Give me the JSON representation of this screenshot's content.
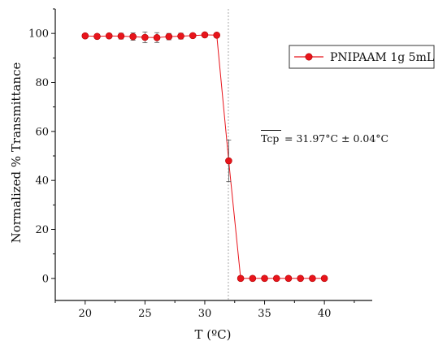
{
  "chart_data": {
    "type": "line",
    "xlabel": "T (ºC)",
    "ylabel": "Normalized % Transmittance",
    "xlim": [
      17.5,
      44
    ],
    "ylim": [
      -9,
      110
    ],
    "xticks": [
      20,
      25,
      30,
      35,
      40
    ],
    "yticks": [
      0,
      20,
      40,
      60,
      80,
      100
    ],
    "xtick_labels": [
      "20",
      "25",
      "30",
      "35",
      "40"
    ],
    "ytick_labels": [
      "0",
      "20",
      "40",
      "60",
      "80",
      "100"
    ],
    "grid": false,
    "legend_position": "right",
    "series": [
      {
        "name": "PNIPAAM 1g 5mL",
        "color": "#e8141b",
        "x": [
          20,
          21,
          22,
          23,
          24,
          25,
          26,
          27,
          28,
          29,
          30,
          31,
          32,
          33,
          34,
          35,
          36,
          37,
          38,
          39,
          40
        ],
        "y": [
          99,
          98.8,
          99,
          98.9,
          98.7,
          98.4,
          98.3,
          98.7,
          98.9,
          99.1,
          99.4,
          99.3,
          48,
          0,
          0,
          0,
          0,
          0,
          0,
          0,
          0
        ],
        "err": [
          0.8,
          0.8,
          0.7,
          1.2,
          1.5,
          2.2,
          2.0,
          1.3,
          1.2,
          0.6,
          0.4,
          0.4,
          8.5,
          0.3,
          0.3,
          0.3,
          0.3,
          0.3,
          0.3,
          0.3,
          0.3
        ]
      }
    ],
    "reference_line_x": 31.97,
    "annotation": {
      "symbol": "Tcp",
      "value": "= 31.97°C ± 0.04°C"
    }
  }
}
